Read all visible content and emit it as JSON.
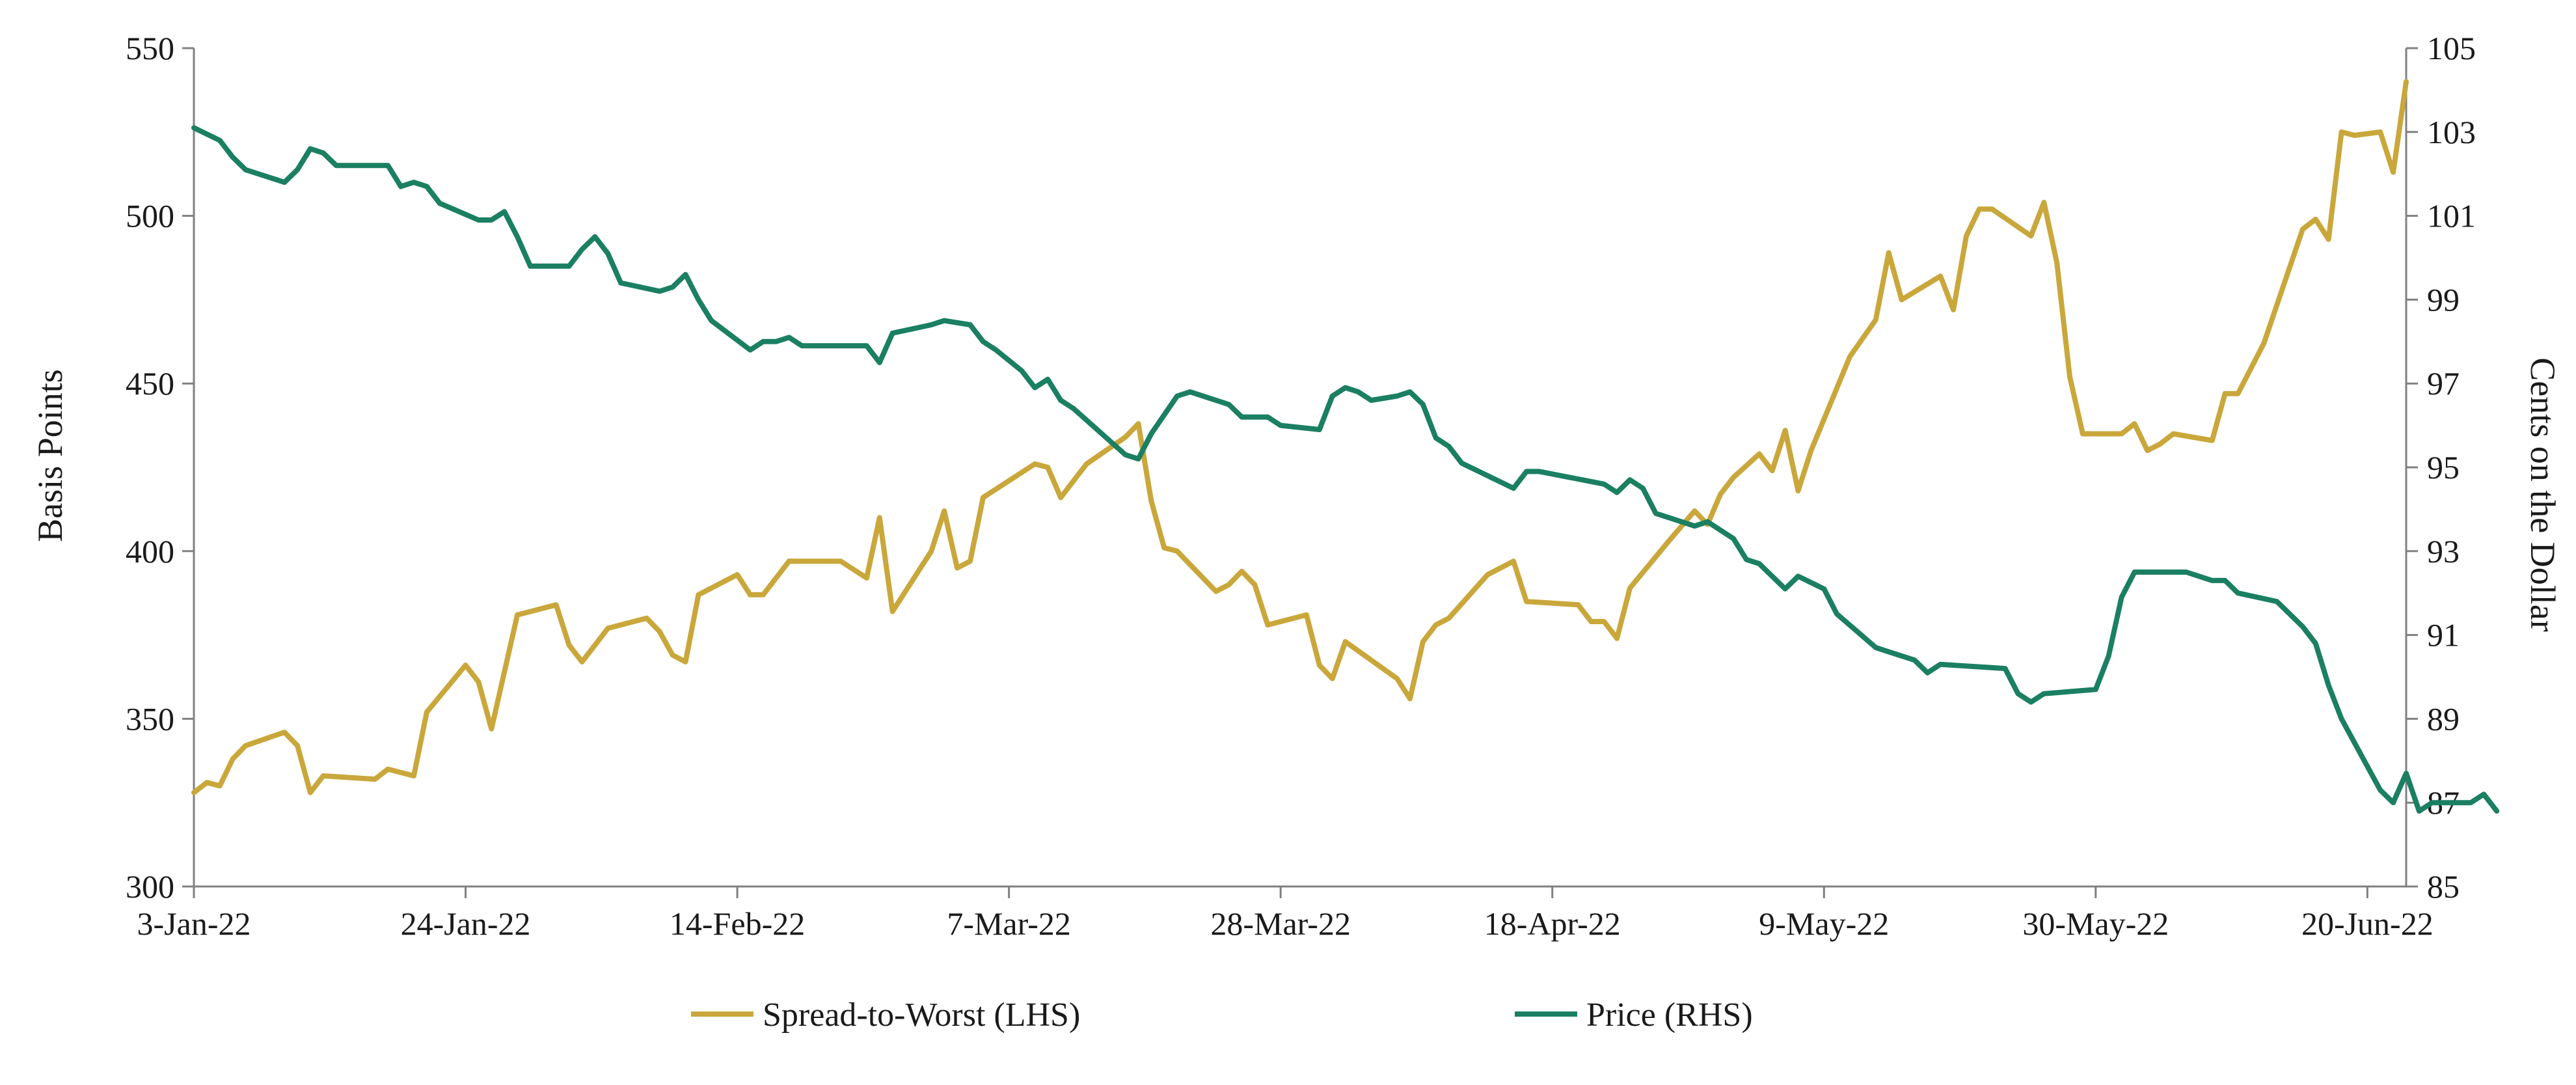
{
  "chart_data": {
    "type": "line",
    "ylabel_left": "Basis Points",
    "ylabel_right": "Cents on the Dollar",
    "ylim_left": [
      300,
      550
    ],
    "ylim_right": [
      85,
      105
    ],
    "yticks_left": [
      300,
      350,
      400,
      450,
      500,
      550
    ],
    "yticks_right": [
      85,
      87,
      89,
      91,
      93,
      95,
      97,
      99,
      101,
      103,
      105
    ],
    "x_domain": [
      "2022-01-03",
      "2022-06-23"
    ],
    "xticks": [
      {
        "date": "2022-01-03",
        "label": "3-Jan-22"
      },
      {
        "date": "2022-01-24",
        "label": "24-Jan-22"
      },
      {
        "date": "2022-02-14",
        "label": "14-Feb-22"
      },
      {
        "date": "2022-03-07",
        "label": "7-Mar-22"
      },
      {
        "date": "2022-03-28",
        "label": "28-Mar-22"
      },
      {
        "date": "2022-04-18",
        "label": "18-Apr-22"
      },
      {
        "date": "2022-05-09",
        "label": "9-May-22"
      },
      {
        "date": "2022-05-30",
        "label": "30-May-22"
      },
      {
        "date": "2022-06-20",
        "label": "20-Jun-22"
      }
    ],
    "grid": false,
    "legend_position": "bottom",
    "series": [
      {
        "name": "Spread-to-Worst (LHS)",
        "axis": "left",
        "color": "#C9A73B",
        "points": [
          [
            "2022-01-03",
            328
          ],
          [
            "2022-01-04",
            331
          ],
          [
            "2022-01-05",
            330
          ],
          [
            "2022-01-06",
            338
          ],
          [
            "2022-01-07",
            342
          ],
          [
            "2022-01-10",
            346
          ],
          [
            "2022-01-11",
            342
          ],
          [
            "2022-01-12",
            328
          ],
          [
            "2022-01-13",
            333
          ],
          [
            "2022-01-17",
            332
          ],
          [
            "2022-01-18",
            335
          ],
          [
            "2022-01-20",
            333
          ],
          [
            "2022-01-21",
            352
          ],
          [
            "2022-01-24",
            366
          ],
          [
            "2022-01-25",
            361
          ],
          [
            "2022-01-26",
            347
          ],
          [
            "2022-01-27",
            364
          ],
          [
            "2022-01-28",
            381
          ],
          [
            "2022-01-31",
            384
          ],
          [
            "2022-02-01",
            372
          ],
          [
            "2022-02-02",
            367
          ],
          [
            "2022-02-03",
            372
          ],
          [
            "2022-02-04",
            377
          ],
          [
            "2022-02-07",
            380
          ],
          [
            "2022-02-08",
            376
          ],
          [
            "2022-02-09",
            369
          ],
          [
            "2022-02-10",
            367
          ],
          [
            "2022-02-11",
            387
          ],
          [
            "2022-02-14",
            393
          ],
          [
            "2022-02-15",
            387
          ],
          [
            "2022-02-16",
            387
          ],
          [
            "2022-02-18",
            397
          ],
          [
            "2022-02-22",
            397
          ],
          [
            "2022-02-24",
            392
          ],
          [
            "2022-02-25",
            410
          ],
          [
            "2022-02-26",
            382
          ],
          [
            "2022-03-01",
            400
          ],
          [
            "2022-03-02",
            412
          ],
          [
            "2022-03-03",
            395
          ],
          [
            "2022-03-04",
            397
          ],
          [
            "2022-03-05",
            416
          ],
          [
            "2022-03-09",
            426
          ],
          [
            "2022-03-10",
            425
          ],
          [
            "2022-03-11",
            416
          ],
          [
            "2022-03-13",
            426
          ],
          [
            "2022-03-16",
            434
          ],
          [
            "2022-03-17",
            438
          ],
          [
            "2022-03-18",
            415
          ],
          [
            "2022-03-19",
            401
          ],
          [
            "2022-03-20",
            400
          ],
          [
            "2022-03-23",
            388
          ],
          [
            "2022-03-24",
            390
          ],
          [
            "2022-03-25",
            394
          ],
          [
            "2022-03-26",
            390
          ],
          [
            "2022-03-27",
            378
          ],
          [
            "2022-03-30",
            381
          ],
          [
            "2022-03-31",
            366
          ],
          [
            "2022-04-01",
            362
          ],
          [
            "2022-04-02",
            373
          ],
          [
            "2022-04-06",
            362
          ],
          [
            "2022-04-07",
            356
          ],
          [
            "2022-04-08",
            373
          ],
          [
            "2022-04-09",
            378
          ],
          [
            "2022-04-10",
            380
          ],
          [
            "2022-04-13",
            393
          ],
          [
            "2022-04-15",
            397
          ],
          [
            "2022-04-16",
            385
          ],
          [
            "2022-04-20",
            384
          ],
          [
            "2022-04-21",
            379
          ],
          [
            "2022-04-22",
            379
          ],
          [
            "2022-04-23",
            374
          ],
          [
            "2022-04-24",
            389
          ],
          [
            "2022-04-27",
            403
          ],
          [
            "2022-04-29",
            412
          ],
          [
            "2022-04-30",
            408
          ],
          [
            "2022-05-01",
            417
          ],
          [
            "2022-05-02",
            422
          ],
          [
            "2022-05-04",
            429
          ],
          [
            "2022-05-05",
            424
          ],
          [
            "2022-05-06",
            436
          ],
          [
            "2022-05-07",
            418
          ],
          [
            "2022-05-08",
            430
          ],
          [
            "2022-05-11",
            458
          ],
          [
            "2022-05-13",
            469
          ],
          [
            "2022-05-14",
            489
          ],
          [
            "2022-05-15",
            475
          ],
          [
            "2022-05-18",
            482
          ],
          [
            "2022-05-19",
            472
          ],
          [
            "2022-05-20",
            494
          ],
          [
            "2022-05-21",
            502
          ],
          [
            "2022-05-22",
            502
          ],
          [
            "2022-05-25",
            494
          ],
          [
            "2022-05-26",
            504
          ],
          [
            "2022-05-27",
            486
          ],
          [
            "2022-05-28",
            452
          ],
          [
            "2022-05-29",
            435
          ],
          [
            "2022-06-01",
            435
          ],
          [
            "2022-06-02",
            438
          ],
          [
            "2022-06-03",
            430
          ],
          [
            "2022-06-04",
            432
          ],
          [
            "2022-06-05",
            435
          ],
          [
            "2022-06-08",
            433
          ],
          [
            "2022-06-09",
            447
          ],
          [
            "2022-06-10",
            447
          ],
          [
            "2022-06-12",
            462
          ],
          [
            "2022-06-15",
            496
          ],
          [
            "2022-06-16",
            499
          ],
          [
            "2022-06-17",
            493
          ],
          [
            "2022-06-18",
            525
          ],
          [
            "2022-06-19",
            524
          ],
          [
            "2022-06-21",
            525
          ],
          [
            "2022-06-22",
            513
          ],
          [
            "2022-06-23",
            540
          ]
        ]
      },
      {
        "name": "Price (RHS)",
        "axis": "right",
        "color": "#1B7F62",
        "points": [
          [
            "2022-01-03",
            103.1
          ],
          [
            "2022-01-05",
            102.8
          ],
          [
            "2022-01-06",
            102.4
          ],
          [
            "2022-01-07",
            102.1
          ],
          [
            "2022-01-10",
            101.8
          ],
          [
            "2022-01-11",
            102.1
          ],
          [
            "2022-01-12",
            102.6
          ],
          [
            "2022-01-13",
            102.5
          ],
          [
            "2022-01-14",
            102.2
          ],
          [
            "2022-01-18",
            102.2
          ],
          [
            "2022-01-19",
            101.7
          ],
          [
            "2022-01-20",
            101.8
          ],
          [
            "2022-01-21",
            101.7
          ],
          [
            "2022-01-22",
            101.3
          ],
          [
            "2022-01-25",
            100.9
          ],
          [
            "2022-01-26",
            100.9
          ],
          [
            "2022-01-27",
            101.1
          ],
          [
            "2022-01-28",
            100.5
          ],
          [
            "2022-01-29",
            99.8
          ],
          [
            "2022-02-01",
            99.8
          ],
          [
            "2022-02-02",
            100.2
          ],
          [
            "2022-02-03",
            100.5
          ],
          [
            "2022-02-04",
            100.1
          ],
          [
            "2022-02-05",
            99.4
          ],
          [
            "2022-02-08",
            99.2
          ],
          [
            "2022-02-09",
            99.3
          ],
          [
            "2022-02-10",
            99.6
          ],
          [
            "2022-02-11",
            99.0
          ],
          [
            "2022-02-12",
            98.5
          ],
          [
            "2022-02-15",
            97.8
          ],
          [
            "2022-02-16",
            98.0
          ],
          [
            "2022-02-17",
            98.0
          ],
          [
            "2022-02-18",
            98.1
          ],
          [
            "2022-02-19",
            97.9
          ],
          [
            "2022-02-22",
            97.9
          ],
          [
            "2022-02-23",
            97.9
          ],
          [
            "2022-02-24",
            97.9
          ],
          [
            "2022-02-25",
            97.5
          ],
          [
            "2022-02-26",
            98.2
          ],
          [
            "2022-03-01",
            98.4
          ],
          [
            "2022-03-02",
            98.5
          ],
          [
            "2022-03-04",
            98.4
          ],
          [
            "2022-03-05",
            98.0
          ],
          [
            "2022-03-06",
            97.8
          ],
          [
            "2022-03-08",
            97.3
          ],
          [
            "2022-03-09",
            96.9
          ],
          [
            "2022-03-10",
            97.1
          ],
          [
            "2022-03-11",
            96.6
          ],
          [
            "2022-03-12",
            96.4
          ],
          [
            "2022-03-16",
            95.3
          ],
          [
            "2022-03-17",
            95.2
          ],
          [
            "2022-03-18",
            95.8
          ],
          [
            "2022-03-20",
            96.7
          ],
          [
            "2022-03-21",
            96.8
          ],
          [
            "2022-03-24",
            96.5
          ],
          [
            "2022-03-25",
            96.2
          ],
          [
            "2022-03-27",
            96.2
          ],
          [
            "2022-03-28",
            96.0
          ],
          [
            "2022-03-31",
            95.9
          ],
          [
            "2022-04-01",
            96.7
          ],
          [
            "2022-04-02",
            96.9
          ],
          [
            "2022-04-03",
            96.8
          ],
          [
            "2022-04-04",
            96.6
          ],
          [
            "2022-04-06",
            96.7
          ],
          [
            "2022-04-07",
            96.8
          ],
          [
            "2022-04-08",
            96.5
          ],
          [
            "2022-04-09",
            95.7
          ],
          [
            "2022-04-10",
            95.5
          ],
          [
            "2022-04-11",
            95.1
          ],
          [
            "2022-04-15",
            94.5
          ],
          [
            "2022-04-16",
            94.9
          ],
          [
            "2022-04-17",
            94.9
          ],
          [
            "2022-04-22",
            94.6
          ],
          [
            "2022-04-23",
            94.4
          ],
          [
            "2022-04-24",
            94.7
          ],
          [
            "2022-04-25",
            94.5
          ],
          [
            "2022-04-26",
            93.9
          ],
          [
            "2022-04-29",
            93.6
          ],
          [
            "2022-04-30",
            93.7
          ],
          [
            "2022-05-02",
            93.3
          ],
          [
            "2022-05-03",
            92.8
          ],
          [
            "2022-05-04",
            92.7
          ],
          [
            "2022-05-06",
            92.1
          ],
          [
            "2022-05-07",
            92.4
          ],
          [
            "2022-05-09",
            92.1
          ],
          [
            "2022-05-10",
            91.5
          ],
          [
            "2022-05-13",
            90.7
          ],
          [
            "2022-05-14",
            90.6
          ],
          [
            "2022-05-16",
            90.4
          ],
          [
            "2022-05-17",
            90.1
          ],
          [
            "2022-05-18",
            90.3
          ],
          [
            "2022-05-23",
            90.2
          ],
          [
            "2022-05-24",
            89.6
          ],
          [
            "2022-05-25",
            89.4
          ],
          [
            "2022-05-26",
            89.6
          ],
          [
            "2022-05-30",
            89.7
          ],
          [
            "2022-05-31",
            90.5
          ],
          [
            "2022-06-01",
            91.9
          ],
          [
            "2022-06-02",
            92.5
          ],
          [
            "2022-06-06",
            92.5
          ],
          [
            "2022-06-07",
            92.4
          ],
          [
            "2022-06-08",
            92.3
          ],
          [
            "2022-06-09",
            92.3
          ],
          [
            "2022-06-10",
            92.0
          ],
          [
            "2022-06-13",
            91.8
          ],
          [
            "2022-06-14",
            91.5
          ],
          [
            "2022-06-15",
            91.2
          ],
          [
            "2022-06-16",
            90.8
          ],
          [
            "2022-06-17",
            89.8
          ],
          [
            "2022-06-18",
            89.0
          ],
          [
            "2022-06-21",
            87.3
          ],
          [
            "2022-06-22",
            87.0
          ],
          [
            "2022-06-23",
            87.7
          ],
          [
            "2022-06-24",
            86.8
          ],
          [
            "2022-06-25",
            87.0
          ],
          [
            "2022-06-28",
            87.0
          ],
          [
            "2022-06-29",
            87.2
          ],
          [
            "2022-06-30",
            86.8
          ]
        ]
      }
    ]
  }
}
